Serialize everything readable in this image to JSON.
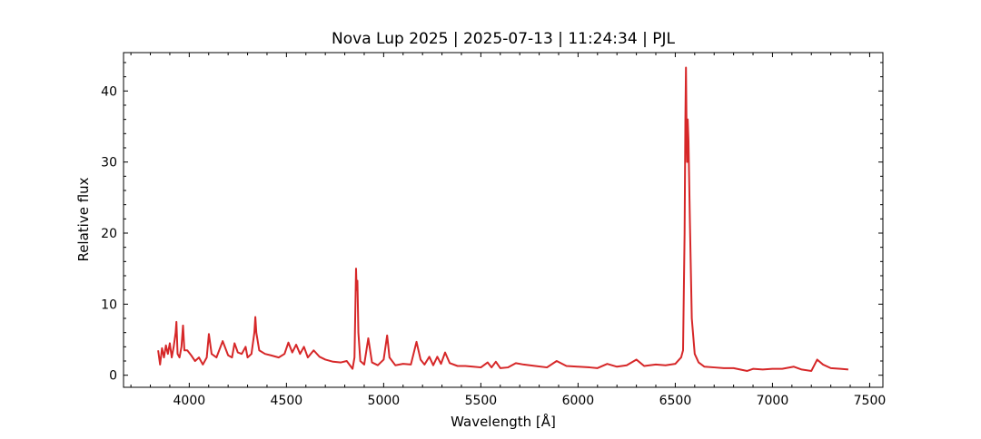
{
  "chart_data": {
    "type": "line",
    "title": "Nova Lup 2025 | 2025-07-13 | 11:24:34 | PJL",
    "x_label": "Wavelength [Å]",
    "y_label": "Relative flux",
    "xlim": [
      3662,
      7568
    ],
    "ylim": [
      -1.7,
      45.4
    ],
    "xticks": [
      4000,
      4500,
      5000,
      5500,
      6000,
      6500,
      7000,
      7500
    ],
    "yticks": [
      0,
      10,
      20,
      30,
      40
    ],
    "xminorticks": [
      3700,
      3800,
      3900,
      4100,
      4200,
      4300,
      4400,
      4600,
      4700,
      4800,
      4900,
      5100,
      5200,
      5300,
      5400,
      5600,
      5700,
      5800,
      5900,
      6100,
      6200,
      6300,
      6400,
      6600,
      6700,
      6800,
      6900,
      7100,
      7200,
      7300,
      7400,
      7500
    ],
    "yminorticks": [
      2,
      4,
      6,
      8,
      12,
      14,
      16,
      18,
      22,
      24,
      26,
      28,
      32,
      34,
      36,
      38,
      42,
      44
    ],
    "grid": false,
    "series": [
      {
        "name": "Nova Lup 2025",
        "color": "#d62728",
        "x": [
          3840,
          3850,
          3860,
          3870,
          3880,
          3890,
          3900,
          3910,
          3920,
          3930,
          3934,
          3940,
          3950,
          3960,
          3968,
          3975,
          3990,
          4010,
          4030,
          4050,
          4070,
          4090,
          4101,
          4115,
          4140,
          4172,
          4200,
          4220,
          4233,
          4250,
          4270,
          4290,
          4300,
          4320,
          4335,
          4340,
          4345,
          4360,
          4390,
          4420,
          4460,
          4490,
          4510,
          4530,
          4550,
          4570,
          4590,
          4610,
          4640,
          4670,
          4700,
          4740,
          4780,
          4810,
          4840,
          4850,
          4858,
          4861,
          4865,
          4870,
          4880,
          4900,
          4921,
          4940,
          4970,
          5000,
          5018,
          5030,
          5060,
          5100,
          5140,
          5169,
          5190,
          5210,
          5235,
          5255,
          5276,
          5295,
          5316,
          5340,
          5380,
          5420,
          5460,
          5500,
          5535,
          5555,
          5577,
          5600,
          5640,
          5680,
          5720,
          5780,
          5840,
          5890,
          5940,
          6000,
          6060,
          6100,
          6150,
          6200,
          6250,
          6300,
          6340,
          6400,
          6450,
          6500,
          6530,
          6540,
          6548,
          6552,
          6555,
          6558,
          6561,
          6564,
          6568,
          6575,
          6585,
          6600,
          6620,
          6650,
          6700,
          6750,
          6800,
          6870,
          6900,
          6950,
          7000,
          7050,
          7110,
          7150,
          7200,
          7230,
          7260,
          7300,
          7350,
          7390
        ],
        "values": [
          3.5,
          1.5,
          3.8,
          2.5,
          4.2,
          3,
          4.5,
          2.5,
          4,
          6,
          7.5,
          3,
          2.5,
          4,
          7,
          3.5,
          3.5,
          2.8,
          2,
          2.5,
          1.5,
          2.5,
          5.8,
          3,
          2.5,
          4.8,
          2.8,
          2.5,
          4.5,
          3.2,
          3,
          4,
          2.5,
          3,
          6,
          8.2,
          6,
          3.5,
          3,
          2.8,
          2.5,
          3,
          4.6,
          3.2,
          4.3,
          3,
          4,
          2.5,
          3.5,
          2.6,
          2.2,
          1.9,
          1.8,
          2,
          0.9,
          2.5,
          15,
          12,
          13.3,
          6,
          2,
          1.5,
          5.2,
          1.8,
          1.4,
          2.2,
          5.6,
          2.5,
          1.4,
          1.6,
          1.5,
          4.7,
          2.2,
          1.5,
          2.6,
          1.4,
          2.6,
          1.6,
          3.2,
          1.7,
          1.3,
          1.3,
          1.2,
          1.1,
          1.8,
          1.1,
          1.9,
          1,
          1.1,
          1.7,
          1.5,
          1.3,
          1.1,
          2,
          1.3,
          1.2,
          1.1,
          1,
          1.6,
          1.2,
          1.4,
          2.2,
          1.3,
          1.5,
          1.4,
          1.6,
          2.5,
          3.5,
          20,
          36,
          43.3,
          35,
          30,
          36,
          33,
          22,
          8,
          3,
          1.8,
          1.2,
          1.1,
          1,
          1,
          0.6,
          0.9,
          0.8,
          0.9,
          0.9,
          1.2,
          0.8,
          0.6,
          2.2,
          1.5,
          1,
          0.9,
          0.8
        ]
      }
    ]
  }
}
